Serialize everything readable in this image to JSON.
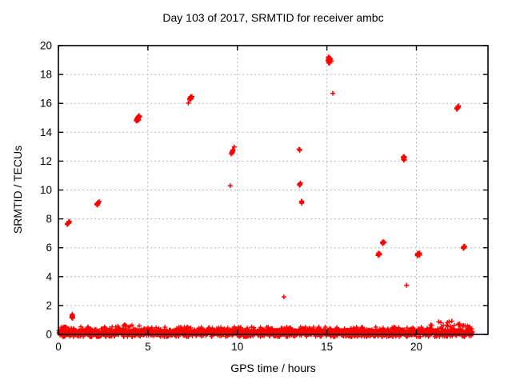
{
  "window": {
    "background": "#ffffff"
  },
  "chart_data": {
    "type": "scatter",
    "title": "Day 103 of 2017, SRMTID for receiver ambc",
    "xlabel": "GPS time / hours",
    "ylabel": "SRMTID / TECUs",
    "xlim": [
      0,
      24
    ],
    "ylim": [
      0,
      20
    ],
    "xticks": [
      0,
      5,
      10,
      15,
      20
    ],
    "yticks": [
      0,
      2,
      4,
      6,
      8,
      10,
      12,
      14,
      16,
      18,
      20
    ],
    "grid": "dashed",
    "legend": "none",
    "marker": "plus",
    "marker_color": "#ff0000",
    "grid_color": "#b5b5b5",
    "axis_color": "#000000",
    "clusters": [
      {
        "t": 0.58,
        "v": 7.75,
        "n": 15,
        "dt": 0.28,
        "dv": 0.55,
        "corr": 0.7
      },
      {
        "t": 0.78,
        "v": 1.25,
        "n": 11,
        "dt": 0.18,
        "dv": 0.85,
        "corr": 0.0
      },
      {
        "t": 2.2,
        "v": 9.05,
        "n": 13,
        "dt": 0.22,
        "dv": 0.45,
        "corr": 0.6
      },
      {
        "t": 4.45,
        "v": 14.95,
        "n": 24,
        "dt": 0.3,
        "dv": 1.0,
        "corr": 0.55
      },
      {
        "t": 7.38,
        "v": 16.35,
        "n": 22,
        "dt": 0.28,
        "dv": 0.95,
        "corr": 0.6
      },
      {
        "t": 9.72,
        "v": 12.65,
        "n": 18,
        "dt": 0.22,
        "dv": 0.75,
        "corr": 0.65
      },
      {
        "t": 13.45,
        "v": 12.8,
        "n": 4,
        "dt": 0.1,
        "dv": 0.2,
        "corr": 0.0
      },
      {
        "t": 13.5,
        "v": 10.4,
        "n": 6,
        "dt": 0.12,
        "dv": 0.3,
        "corr": 0.0
      },
      {
        "t": 13.6,
        "v": 9.15,
        "n": 8,
        "dt": 0.16,
        "dv": 0.4,
        "corr": 0.3
      },
      {
        "t": 15.15,
        "v": 19.0,
        "n": 22,
        "dt": 0.28,
        "dv": 0.95,
        "corr": 0.25
      },
      {
        "t": 17.9,
        "v": 5.55,
        "n": 9,
        "dt": 0.2,
        "dv": 0.4,
        "corr": 0.2
      },
      {
        "t": 18.15,
        "v": 6.35,
        "n": 8,
        "dt": 0.16,
        "dv": 0.35,
        "corr": 0.2
      },
      {
        "t": 19.3,
        "v": 12.2,
        "n": 12,
        "dt": 0.2,
        "dv": 0.5,
        "corr": 0.1
      },
      {
        "t": 20.1,
        "v": 5.5,
        "n": 10,
        "dt": 0.22,
        "dv": 0.45,
        "corr": 0.2
      },
      {
        "t": 22.3,
        "v": 15.7,
        "n": 11,
        "dt": 0.2,
        "dv": 0.45,
        "corr": 0.5
      },
      {
        "t": 22.65,
        "v": 6.05,
        "n": 11,
        "dt": 0.2,
        "dv": 0.45,
        "corr": 0.5
      }
    ],
    "singles": [
      {
        "t": 9.6,
        "v": 10.3
      },
      {
        "t": 12.6,
        "v": 2.6
      },
      {
        "t": 15.33,
        "v": 16.7
      },
      {
        "t": 19.45,
        "v": 3.4
      }
    ],
    "noise_band": {
      "t_start": 0.03,
      "t_end": 23.12,
      "core_level": 0.28,
      "base_amp": 0.38,
      "dip_below_zero": 0.16,
      "bumps": [
        {
          "t": 3.95,
          "amp": 0.45,
          "width": 0.55
        },
        {
          "t": 21.7,
          "amp": 0.55,
          "width": 0.8
        }
      ],
      "points": 2300
    }
  }
}
